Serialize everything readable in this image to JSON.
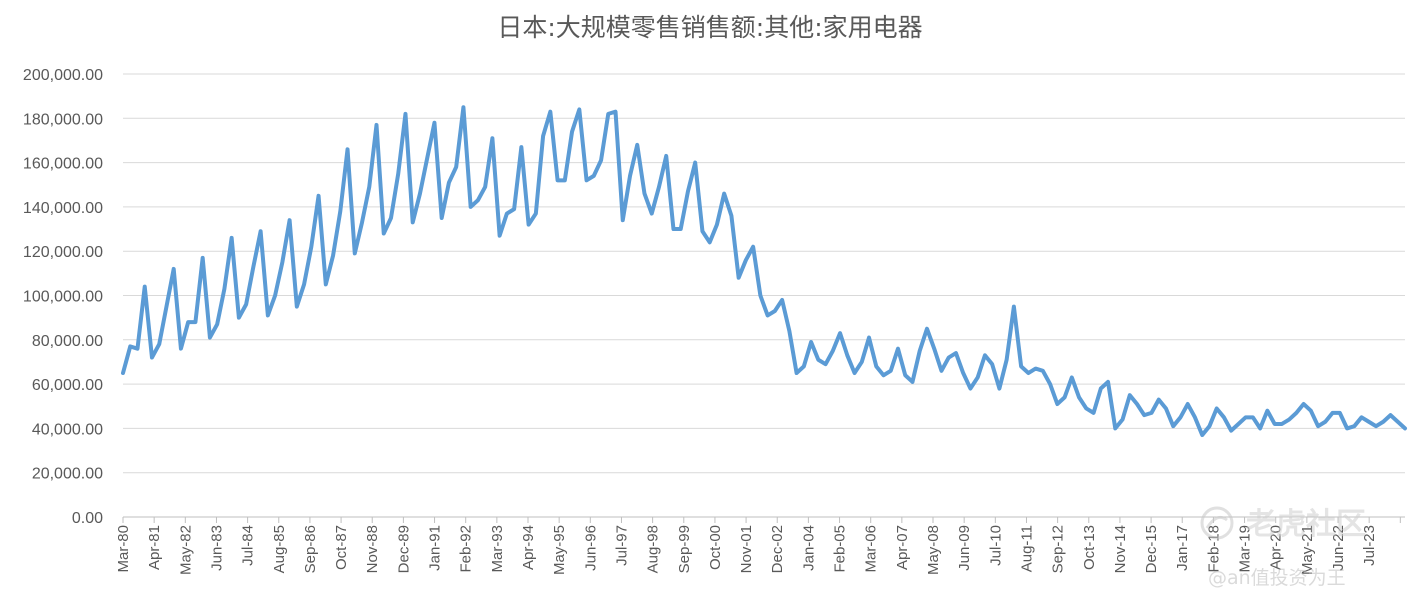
{
  "chart_data": {
    "type": "line",
    "title": "日本:大规模零售销售额:其他:家用电器",
    "xlabel": "",
    "ylabel": "",
    "ylim": [
      0,
      200000
    ],
    "yticks": [
      "0.00",
      "20,000.00",
      "40,000.00",
      "60,000.00",
      "80,000.00",
      "100,000.00",
      "120,000.00",
      "140,000.00",
      "160,000.00",
      "180,000.00",
      "200,000.00"
    ],
    "grid": true,
    "legend": "none",
    "series_color": "#5b9bd5",
    "x_tick_labels": [
      "Mar-80",
      "Apr-81",
      "May-82",
      "Jun-83",
      "Jul-84",
      "Aug-85",
      "Sep-86",
      "Oct-87",
      "Nov-88",
      "Dec-89",
      "Jan-91",
      "Feb-92",
      "Mar-93",
      "Apr-94",
      "May-95",
      "Jun-96",
      "Jul-97",
      "Aug-98",
      "Sep-99",
      "Oct-00",
      "Nov-01",
      "Dec-02",
      "Jan-04",
      "Feb-05",
      "Mar-06",
      "Apr-07",
      "May-08",
      "Jun-09",
      "Jul-10",
      "Aug-11",
      "Sep-12",
      "Oct-13",
      "Nov-14",
      "Dec-15",
      "Jan-17",
      "Feb-18",
      "Mar-19",
      "Apr-20",
      "May-21",
      "Jun-22",
      "Jul-23"
    ],
    "series": [
      {
        "values": [
          65000,
          77000,
          76000,
          104000,
          72000,
          78000,
          95000,
          112000,
          76000,
          88000,
          88000,
          117000,
          81000,
          87000,
          103000,
          126000,
          90000,
          96000,
          113000,
          129000,
          91000,
          100000,
          115000,
          134000,
          95000,
          105000,
          122000,
          145000,
          105000,
          118000,
          138000,
          166000,
          119000,
          133000,
          149000,
          177000,
          128000,
          135000,
          155000,
          182000,
          133000,
          146000,
          162000,
          178000,
          135000,
          151000,
          158000,
          185000,
          140000,
          143000,
          149000,
          171000,
          127000,
          137000,
          139000,
          167000,
          132000,
          137000,
          172000,
          183000,
          152000,
          152000,
          174000,
          184000,
          152000,
          154000,
          161000,
          182000,
          183000,
          134000,
          154000,
          168000,
          146000,
          137000,
          149000,
          163000,
          130000,
          130000,
          147000,
          160000,
          129000,
          124000,
          132000,
          146000,
          136000,
          108000,
          116000,
          122000,
          100000,
          91000,
          93000,
          98000,
          84000,
          65000,
          68000,
          79000,
          71000,
          69000,
          75000,
          83000,
          73000,
          65000,
          70000,
          81000,
          68000,
          64000,
          66000,
          76000,
          64000,
          61000,
          75000,
          85000,
          76000,
          66000,
          72000,
          74000,
          65000,
          58000,
          63000,
          73000,
          69000,
          58000,
          71000,
          95000,
          68000,
          65000,
          67000,
          66000,
          60000,
          51000,
          54000,
          63000,
          54000,
          49000,
          47000,
          58000,
          61000,
          40000,
          44000,
          55000,
          51000,
          46000,
          47000,
          53000,
          49000,
          41000,
          45000,
          51000,
          45000,
          37000,
          41000,
          49000,
          45000,
          39000,
          42000,
          45000,
          45000,
          40000,
          48000,
          42000,
          42000,
          44000,
          47000,
          51000,
          48000,
          41000,
          43000,
          47000,
          47000,
          40000,
          41000,
          45000,
          43000,
          41000,
          43000,
          46000,
          43000,
          40000
        ]
      }
    ]
  },
  "watermark": {
    "brand": "老虎社区",
    "handle": "@an值投资为王"
  }
}
